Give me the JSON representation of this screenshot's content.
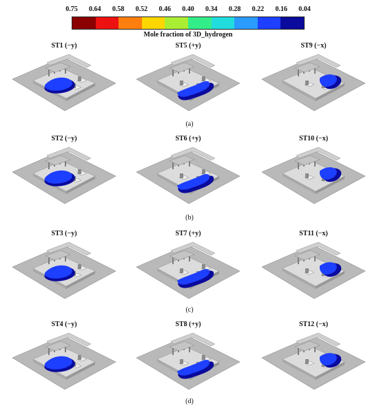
{
  "colorbar": {
    "ticks": [
      "0.75",
      "0.64",
      "0.58",
      "0.52",
      "0.46",
      "0.40",
      "0.34",
      "0.28",
      "0.22",
      "0.16",
      "0.04"
    ],
    "colors": [
      "#8b0000",
      "#ee1111",
      "#ff7f0e",
      "#ffd700",
      "#aaee33",
      "#33ee88",
      "#22dddd",
      "#2a9bff",
      "#1d3fff",
      "#0a0a9c"
    ],
    "label": "Mole fraction of 3D_hydrogen"
  },
  "rows": [
    {
      "label": "(a)",
      "panels": [
        {
          "title": "ST1 (−y)",
          "plume": "left"
        },
        {
          "title": "ST5 (+y)",
          "plume": "front"
        },
        {
          "title": "ST9 (−x)",
          "plume": "right"
        }
      ]
    },
    {
      "label": "(b)",
      "panels": [
        {
          "title": "ST2 (−y)",
          "plume": "left"
        },
        {
          "title": "ST6 (+y)",
          "plume": "front"
        },
        {
          "title": "ST10 (−x)",
          "plume": "right"
        }
      ]
    },
    {
      "label": "(c)",
      "panels": [
        {
          "title": "ST3 (−y)",
          "plume": "left"
        },
        {
          "title": "ST7 (+y)",
          "plume": "front"
        },
        {
          "title": "ST11 (−x)",
          "plume": "right"
        }
      ]
    },
    {
      "label": "(d)",
      "panels": [
        {
          "title": "ST4 (−y)",
          "plume": "left"
        },
        {
          "title": "ST8 (+y)",
          "plume": "front"
        },
        {
          "title": "ST12 (−x)",
          "plume": "right"
        }
      ]
    }
  ]
}
